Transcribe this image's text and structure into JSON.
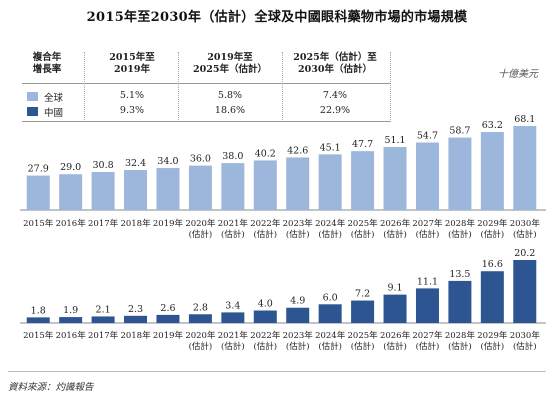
{
  "title": "2015年至2030年（估計）全球及中國眼科藥物市場的市場規模",
  "unit": "十億美元",
  "source": "資料來源：灼識報告",
  "cagr_table": {
    "col0": [
      "複合年",
      "增長率"
    ],
    "col1": [
      "2015年至",
      "2019年"
    ],
    "col2": [
      "2019年至",
      "2025年（估計）"
    ],
    "col3": [
      "2025年（估計）至",
      "2030年（估計）"
    ],
    "rows": [
      {
        "label": "全球",
        "color": "#9cb6dc",
        "values": [
          "5.1%",
          "5.8%",
          "7.4%"
        ]
      },
      {
        "label": "中國",
        "color": "#2d5592",
        "values": [
          "9.3%",
          "18.6%",
          "22.9%"
        ]
      }
    ]
  },
  "chart_data": [
    {
      "type": "bar",
      "series": [
        {
          "name": "全球",
          "values": [
            27.9,
            29.0,
            30.8,
            32.4,
            34.0,
            36.0,
            38.0,
            40.2,
            42.6,
            45.1,
            47.7,
            51.1,
            54.7,
            58.7,
            63.2,
            68.1
          ]
        }
      ],
      "categories": [
        [
          "2015年"
        ],
        [
          "2016年"
        ],
        [
          "2017年"
        ],
        [
          "2018年"
        ],
        [
          "2019年"
        ],
        [
          "2020年",
          "(估計)"
        ],
        [
          "2021年",
          "(估計)"
        ],
        [
          "2022年",
          "(估計)"
        ],
        [
          "2023年",
          "(估計)"
        ],
        [
          "2024年",
          "(估計)"
        ],
        [
          "2025年",
          "(估計)"
        ],
        [
          "2026年",
          "(估計)"
        ],
        [
          "2027年",
          "(估計)"
        ],
        [
          "2028年",
          "(估計)"
        ],
        [
          "2029年",
          "(估計)"
        ],
        [
          "2030年",
          "(估計)"
        ]
      ],
      "color": "#9cb6dc",
      "ylim": [
        0,
        68.1
      ]
    },
    {
      "type": "bar",
      "series": [
        {
          "name": "中國",
          "values": [
            1.8,
            1.9,
            2.1,
            2.3,
            2.6,
            2.8,
            3.4,
            4.0,
            4.9,
            6.0,
            7.2,
            9.1,
            11.1,
            13.5,
            16.6,
            20.2
          ]
        }
      ],
      "categories": [
        [
          "2015年"
        ],
        [
          "2016年"
        ],
        [
          "2017年"
        ],
        [
          "2018年"
        ],
        [
          "2019年"
        ],
        [
          "2020年",
          "(估計)"
        ],
        [
          "2021年",
          "(估計)"
        ],
        [
          "2022年",
          "(估計)"
        ],
        [
          "2023年",
          "(估計)"
        ],
        [
          "2024年",
          "(估計)"
        ],
        [
          "2025年",
          "(估計)"
        ],
        [
          "2026年",
          "(估計)"
        ],
        [
          "2027年",
          "(估計)"
        ],
        [
          "2028年",
          "(估計)"
        ],
        [
          "2029年",
          "(估計)"
        ],
        [
          "2030年",
          "(估計)"
        ]
      ],
      "color": "#2d5592",
      "ylim": [
        0,
        20.2
      ]
    }
  ]
}
